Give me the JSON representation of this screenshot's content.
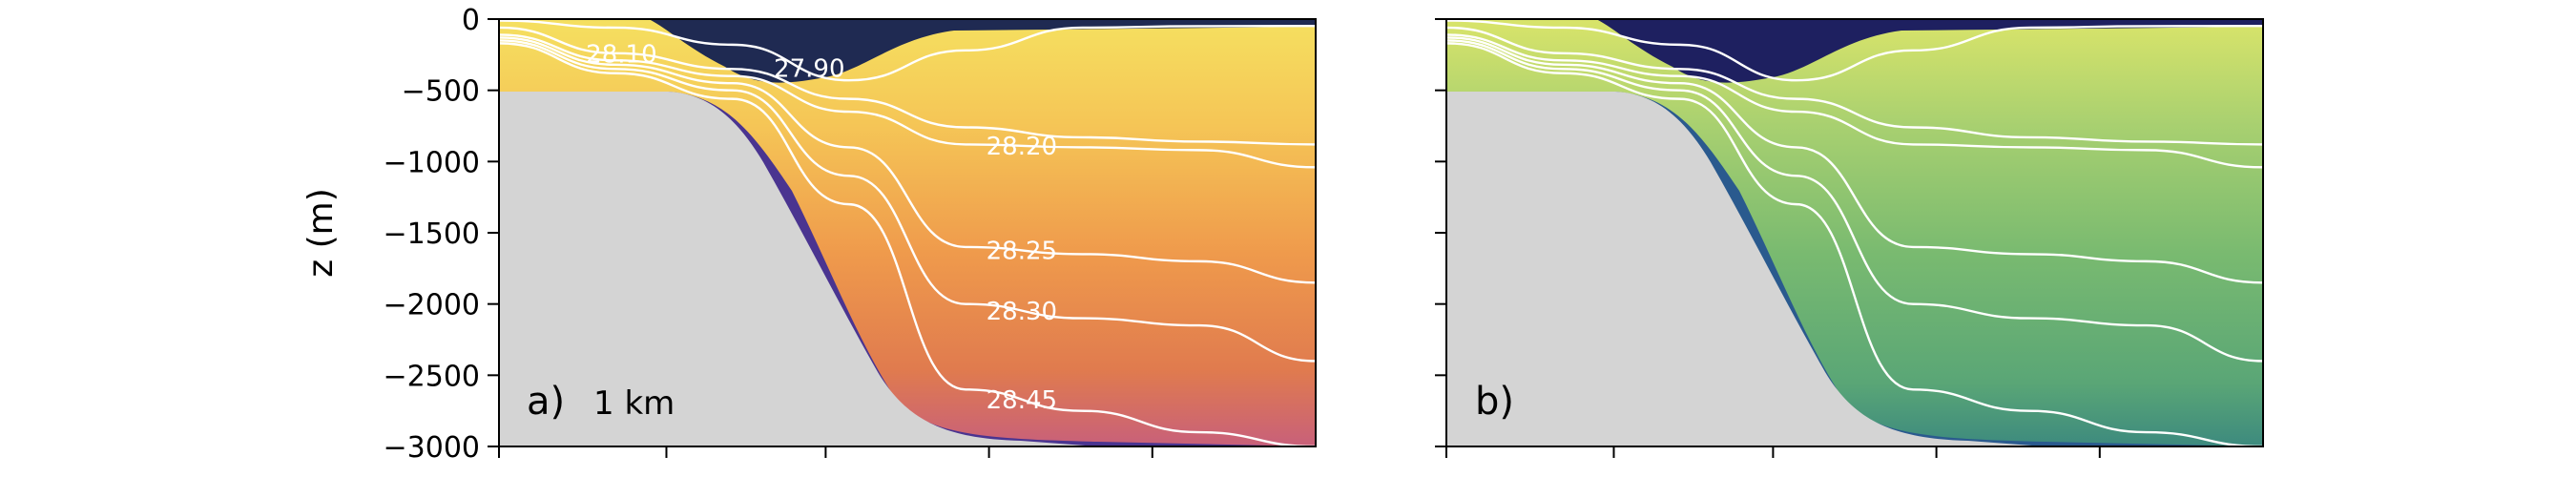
{
  "chart_data": [
    {
      "type": "heatmap",
      "panel_label": "a)",
      "annotation": "1 km",
      "ylabel": "z (m)",
      "ylim": [
        -3000,
        0
      ],
      "yticks": [
        0,
        -500,
        -1000,
        -1500,
        -2000,
        -2500,
        -3000
      ],
      "ytick_labels": [
        "0",
        "−500",
        "−1000",
        "−1500",
        "−2000",
        "−2500",
        "−3000"
      ],
      "xtick_count": 5,
      "colormap": [
        "#2d1b5e",
        "#6a3f9e",
        "#c8607a",
        "#ef9a4c",
        "#f5e060"
      ],
      "contours": [
        {
          "label": "27.90",
          "depths": [
            -10,
            -60,
            -180,
            -430,
            -220,
            -60,
            -50,
            -48
          ]
        },
        {
          "label": "28.10",
          "depths": [
            -60,
            -240,
            -350,
            -560,
            -760,
            -830,
            -860,
            -880
          ]
        },
        {
          "label": "28.20",
          "depths": [
            -110,
            -290,
            -400,
            -650,
            -880,
            -900,
            -920,
            -1040
          ]
        },
        {
          "label": "28.25",
          "depths": [
            -130,
            -320,
            -450,
            -900,
            -1600,
            -1650,
            -1700,
            -1850
          ]
        },
        {
          "label": "28.30",
          "depths": [
            -150,
            -350,
            -500,
            -1100,
            -2000,
            -2100,
            -2150,
            -2400
          ]
        },
        {
          "label": "28.45",
          "depths": [
            -170,
            -380,
            -560,
            -1300,
            -2600,
            -2750,
            -2900,
            -3000
          ]
        }
      ]
    },
    {
      "type": "heatmap",
      "panel_label": "b)",
      "annotation": "",
      "ylim": [
        -3000,
        0
      ],
      "yticks": [
        0,
        -500,
        -1000,
        -1500,
        -2000,
        -2500,
        -3000
      ],
      "xtick_count": 5,
      "colormap": [
        "#1e2060",
        "#23568a",
        "#3d8a7e",
        "#79ba70",
        "#d9e46a"
      ],
      "contours": [
        {
          "label": "",
          "depths": [
            -10,
            -60,
            -180,
            -430,
            -220,
            -60,
            -50,
            -48
          ]
        },
        {
          "label": "",
          "depths": [
            -60,
            -240,
            -350,
            -560,
            -760,
            -830,
            -860,
            -880
          ]
        },
        {
          "label": "",
          "depths": [
            -110,
            -290,
            -400,
            -650,
            -880,
            -900,
            -920,
            -1040
          ]
        },
        {
          "label": "",
          "depths": [
            -130,
            -320,
            -450,
            -900,
            -1600,
            -1650,
            -1700,
            -1850
          ]
        },
        {
          "label": "",
          "depths": [
            -150,
            -350,
            -500,
            -1100,
            -2000,
            -2100,
            -2150,
            -2400
          ]
        },
        {
          "label": "",
          "depths": [
            -170,
            -380,
            -560,
            -1300,
            -2600,
            -2750,
            -2900,
            -3000
          ]
        }
      ]
    }
  ]
}
